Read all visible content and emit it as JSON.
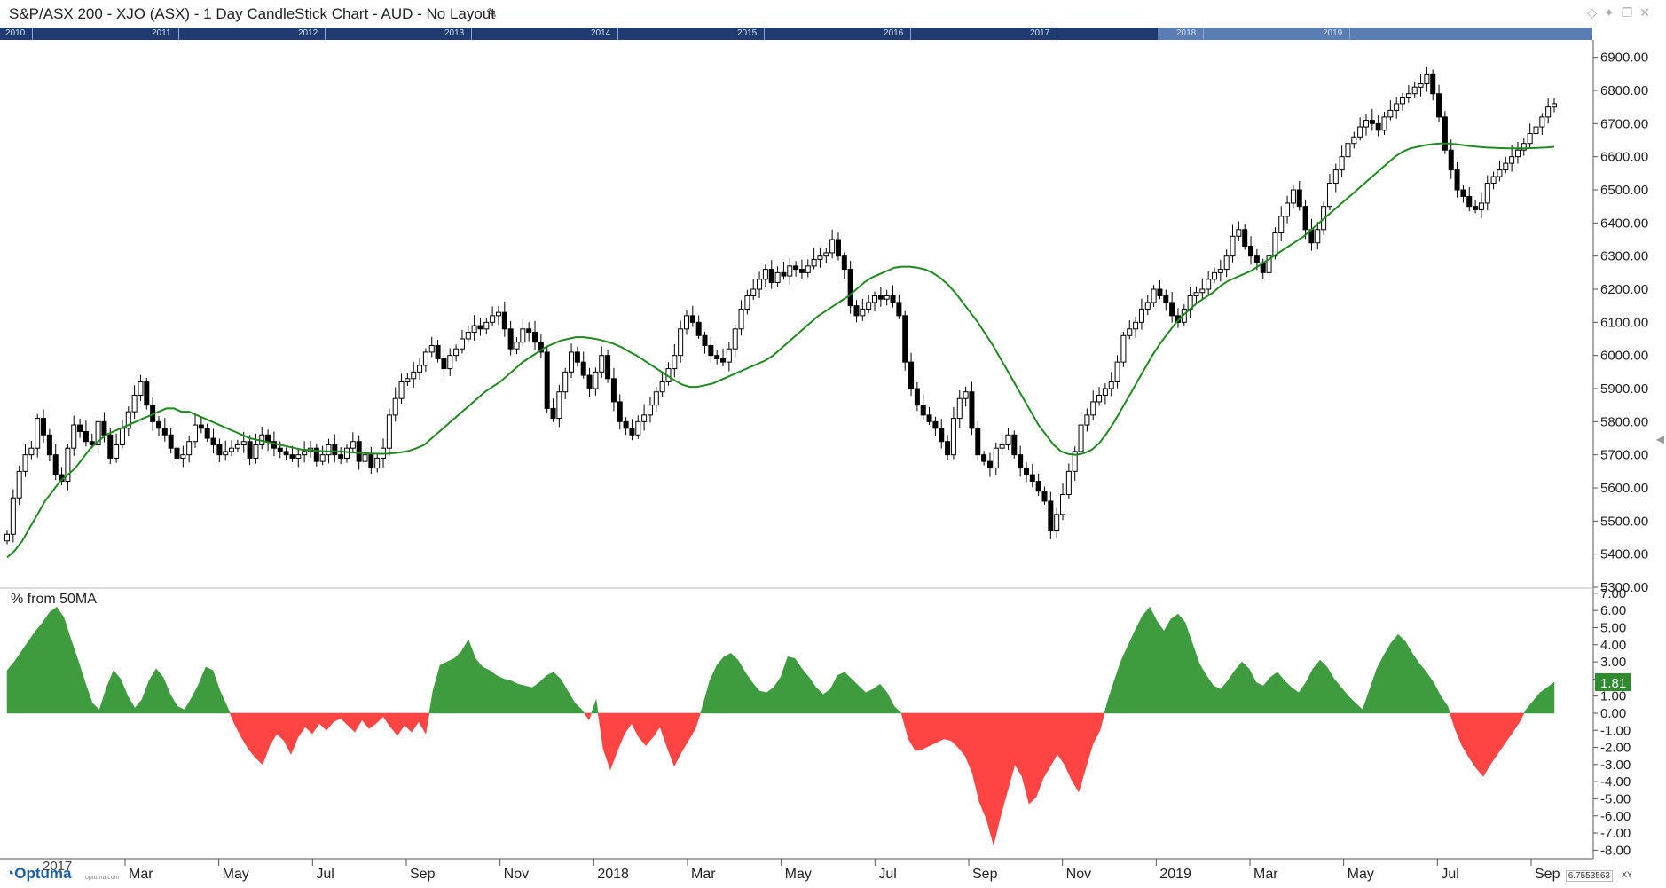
{
  "window": {
    "title": "S&P/ASX 200 - XJO (ASX) - 1 Day CandleStick Chart - AUD - No Layout",
    "edit_icon": "pencil-icon",
    "window_icons": [
      "diamond-icon",
      "pin-icon",
      "restore-icon",
      "close-icon"
    ]
  },
  "navigator": {
    "years": [
      "2010",
      "2011",
      "2012",
      "2013",
      "2014",
      "2015",
      "2016",
      "2017",
      "2018",
      "2019"
    ]
  },
  "colors": {
    "candle": "#000000",
    "ma_line": "#1f8a1f",
    "positive_fill": "#3f9b3f",
    "negative_fill": "#ff4444",
    "nav_bg": "#1f3b72",
    "value_badge": "#2e8b2e"
  },
  "chart_data": [
    {
      "type": "candlestick",
      "title": "S&P/ASX 200 - XJO (ASX) - 1 Day CandleStick Chart - AUD - No Layout",
      "ylim": [
        5300,
        6950
      ],
      "y_ticks": [
        "6900.00",
        "6800.00",
        "6700.00",
        "6600.00",
        "6500.00",
        "6400.00",
        "6300.00",
        "6200.00",
        "6100.00",
        "6000.00",
        "5900.00",
        "5800.00",
        "5700.00",
        "5600.00",
        "5500.00",
        "5400.00",
        "5300.00"
      ],
      "x_labels": [
        "Mar",
        "May",
        "Jul",
        "Sep",
        "Nov",
        "2018",
        "Mar",
        "May",
        "Jul",
        "Sep",
        "Nov",
        "2019",
        "Mar",
        "May",
        "Jul",
        "Sep"
      ],
      "close_series": [
        5460,
        5570,
        5650,
        5700,
        5720,
        5810,
        5760,
        5700,
        5640,
        5620,
        5720,
        5790,
        5770,
        5740,
        5730,
        5800,
        5760,
        5690,
        5730,
        5780,
        5830,
        5880,
        5920,
        5850,
        5800,
        5780,
        5760,
        5720,
        5690,
        5700,
        5740,
        5790,
        5780,
        5750,
        5730,
        5700,
        5710,
        5720,
        5730,
        5740,
        5690,
        5730,
        5760,
        5740,
        5720,
        5710,
        5700,
        5690,
        5700,
        5710,
        5720,
        5680,
        5700,
        5730,
        5700,
        5690,
        5720,
        5740,
        5680,
        5700,
        5660,
        5690,
        5720,
        5820,
        5870,
        5920,
        5930,
        5950,
        5970,
        6010,
        6030,
        5990,
        5960,
        6000,
        6020,
        6050,
        6070,
        6090,
        6080,
        6100,
        6120,
        6130,
        6080,
        6020,
        6040,
        6080,
        6070,
        6040,
        6010,
        5840,
        5810,
        5890,
        5950,
        6010,
        5980,
        5940,
        5900,
        5950,
        6000,
        5930,
        5860,
        5800,
        5780,
        5760,
        5800,
        5820,
        5850,
        5890,
        5920,
        5960,
        6000,
        6080,
        6120,
        6100,
        6060,
        6030,
        6000,
        5990,
        5980,
        6020,
        6080,
        6140,
        6180,
        6200,
        6230,
        6260,
        6220,
        6250,
        6240,
        6270,
        6260,
        6250,
        6270,
        6290,
        6300,
        6310,
        6350,
        6300,
        6260,
        6150,
        6120,
        6140,
        6160,
        6180,
        6170,
        6180,
        6160,
        6120,
        5980,
        5900,
        5850,
        5820,
        5800,
        5780,
        5740,
        5700,
        5810,
        5870,
        5890,
        5780,
        5700,
        5680,
        5660,
        5720,
        5730,
        5760,
        5700,
        5660,
        5640,
        5620,
        5590,
        5560,
        5470,
        5520,
        5580,
        5650,
        5710,
        5790,
        5820,
        5860,
        5880,
        5900,
        5920,
        5980,
        6060,
        6080,
        6100,
        6140,
        6160,
        6200,
        6180,
        6160,
        6120,
        6100,
        6140,
        6180,
        6190,
        6200,
        6230,
        6250,
        6260,
        6300,
        6360,
        6380,
        6330,
        6300,
        6280,
        6250,
        6300,
        6370,
        6420,
        6460,
        6500,
        6450,
        6380,
        6340,
        6380,
        6450,
        6520,
        6560,
        6600,
        6640,
        6660,
        6690,
        6710,
        6700,
        6680,
        6720,
        6740,
        6760,
        6780,
        6790,
        6810,
        6820,
        6850,
        6790,
        6720,
        6620,
        6560,
        6500,
        6480,
        6450,
        6440,
        6460,
        6520,
        6540,
        6560,
        6580,
        6600,
        6620,
        6640,
        6670,
        6690,
        6720,
        6750,
        6760
      ],
      "ma50_series": [
        5390,
        5410,
        5440,
        5480,
        5520,
        5560,
        5590,
        5620,
        5640,
        5660,
        5690,
        5720,
        5740,
        5760,
        5770,
        5780,
        5790,
        5800,
        5810,
        5820,
        5830,
        5840,
        5840,
        5830,
        5830,
        5820,
        5810,
        5800,
        5790,
        5780,
        5770,
        5760,
        5750,
        5745,
        5740,
        5735,
        5730,
        5725,
        5720,
        5715,
        5715,
        5712,
        5710,
        5710,
        5710,
        5708,
        5706,
        5705,
        5704,
        5703,
        5703,
        5705,
        5708,
        5712,
        5720,
        5730,
        5750,
        5770,
        5790,
        5810,
        5830,
        5850,
        5870,
        5890,
        5905,
        5920,
        5940,
        5960,
        5980,
        5995,
        6010,
        6025,
        6035,
        6045,
        6050,
        6055,
        6055,
        6052,
        6048,
        6042,
        6035,
        6025,
        6012,
        6000,
        5985,
        5970,
        5955,
        5940,
        5925,
        5912,
        5905,
        5905,
        5910,
        5915,
        5925,
        5935,
        5945,
        5955,
        5965,
        5975,
        5985,
        6000,
        6020,
        6040,
        6060,
        6080,
        6100,
        6120,
        6135,
        6150,
        6165,
        6180,
        6200,
        6220,
        6235,
        6245,
        6255,
        6265,
        6268,
        6268,
        6265,
        6260,
        6250,
        6235,
        6215,
        6190,
        6160,
        6130,
        6100,
        6065,
        6030,
        5990,
        5950,
        5910,
        5870,
        5830,
        5790,
        5760,
        5730,
        5710,
        5702,
        5700,
        5705,
        5715,
        5735,
        5765,
        5800,
        5840,
        5880,
        5920,
        5960,
        6000,
        6035,
        6065,
        6095,
        6120,
        6140,
        6160,
        6175,
        6190,
        6210,
        6225,
        6235,
        6245,
        6255,
        6270,
        6285,
        6300,
        6315,
        6330,
        6345,
        6360,
        6380,
        6400,
        6420,
        6440,
        6460,
        6480,
        6500,
        6520,
        6540,
        6560,
        6580,
        6600,
        6615,
        6625,
        6630,
        6635,
        6638,
        6640,
        6640,
        6638,
        6635,
        6632,
        6630,
        6628,
        6627,
        6626,
        6625,
        6625,
        6625,
        6626,
        6627,
        6628,
        6630
      ]
    },
    {
      "type": "area",
      "title": "% from 50MA",
      "ylim": [
        -8.5,
        7.2
      ],
      "y_ticks": [
        "7.00",
        "6.00",
        "5.00",
        "4.00",
        "3.00",
        "2.00",
        "1.00",
        "0.00",
        "-1.00",
        "-2.00",
        "-3.00",
        "-4.00",
        "-5.00",
        "-6.00",
        "-7.00",
        "-8.00"
      ],
      "last_value": "1.81",
      "values": [
        2.5,
        3.0,
        3.6,
        4.2,
        4.8,
        5.3,
        5.9,
        6.2,
        5.6,
        4.3,
        3.1,
        1.8,
        0.6,
        0.2,
        1.5,
        2.5,
        2.0,
        1.0,
        0.3,
        0.8,
        1.9,
        2.6,
        2.1,
        1.1,
        0.4,
        0.2,
        0.9,
        1.7,
        2.7,
        2.5,
        1.3,
        0.4,
        -0.6,
        -1.4,
        -2.1,
        -2.6,
        -3.0,
        -1.9,
        -1.2,
        -1.6,
        -2.4,
        -1.4,
        -0.8,
        -1.2,
        -0.6,
        -1.0,
        -0.5,
        -0.3,
        -0.7,
        -1.1,
        -0.4,
        -0.9,
        -0.6,
        -0.2,
        -0.8,
        -1.3,
        -0.7,
        -1.1,
        -0.5,
        -1.2,
        1.3,
        2.8,
        3.0,
        3.2,
        3.6,
        4.3,
        3.2,
        2.7,
        2.5,
        2.2,
        2.0,
        1.9,
        1.7,
        1.6,
        1.5,
        1.8,
        2.2,
        2.4,
        2.0,
        1.3,
        0.6,
        0.2,
        -0.4,
        0.8,
        -2.1,
        -3.3,
        -2.2,
        -1.2,
        -0.6,
        -1.4,
        -1.9,
        -1.4,
        -0.8,
        -2.0,
        -3.1,
        -2.3,
        -1.6,
        -0.9,
        0.4,
        1.9,
        2.8,
        3.3,
        3.5,
        3.1,
        2.4,
        1.8,
        1.3,
        1.2,
        1.5,
        2.1,
        3.3,
        3.2,
        2.6,
        2.1,
        1.5,
        1.1,
        1.4,
        2.2,
        2.4,
        2.0,
        1.6,
        1.2,
        1.4,
        1.7,
        1.2,
        0.4,
        0.0,
        -1.5,
        -2.2,
        -2.1,
        -1.9,
        -1.7,
        -1.5,
        -1.6,
        -2.0,
        -2.5,
        -3.5,
        -5.2,
        -6.2,
        -7.7,
        -6.0,
        -4.5,
        -3.0,
        -3.7,
        -5.3,
        -4.9,
        -3.8,
        -3.1,
        -2.4,
        -3.0,
        -3.9,
        -4.6,
        -3.2,
        -1.8,
        -1.0,
        0.6,
        1.9,
        3.1,
        4.0,
        4.9,
        5.7,
        6.2,
        5.4,
        4.8,
        5.5,
        5.8,
        5.3,
        4.1,
        2.9,
        2.2,
        1.6,
        1.4,
        1.9,
        2.5,
        3.0,
        2.6,
        1.8,
        1.6,
        2.1,
        2.4,
        1.9,
        1.5,
        1.2,
        1.8,
        2.6,
        3.1,
        2.7,
        2.0,
        1.5,
        1.0,
        0.6,
        0.2,
        1.4,
        2.6,
        3.4,
        4.1,
        4.6,
        4.2,
        3.5,
        2.9,
        2.4,
        1.8,
        1.0,
        0.4,
        -0.9,
        -1.9,
        -2.6,
        -3.2,
        -3.7,
        -3.0,
        -2.4,
        -1.8,
        -1.2,
        -0.6,
        0.2,
        0.7,
        1.2,
        1.5,
        1.81
      ]
    }
  ],
  "footer": {
    "brand": "Optuma",
    "brand_url": "optuma.com",
    "first_x_label": "2017",
    "coordinate": "6.7553563",
    "coordinate_label": "XY"
  }
}
